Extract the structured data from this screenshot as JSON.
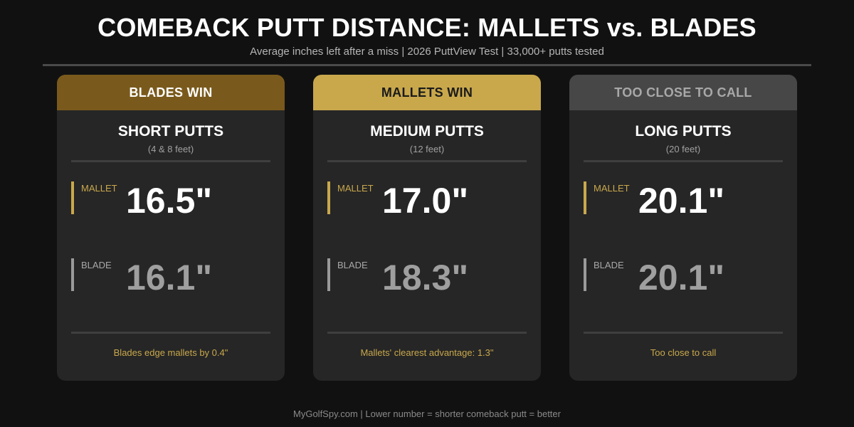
{
  "header": {
    "title": "COMEBACK PUTT DISTANCE: MALLETS vs. BLADES",
    "subtitle": "Average inches left after a miss  |  2026 PuttView Test  |  33,000+ putts tested"
  },
  "chart_data": {
    "type": "table",
    "title": "COMEBACK PUTT DISTANCE: MALLETS vs. BLADES",
    "subtitle": "Average inches left after a miss  |  2026 PuttView Test  |  33,000+ putts tested",
    "unit": "inches",
    "series_names": [
      "MALLET",
      "BLADE"
    ],
    "categories": [
      {
        "verdict": "BLADES WIN",
        "verdict_bg": "#7a5a1c",
        "verdict_fg": "#ffffff",
        "name": "SHORT PUTTS",
        "distance": "(4 & 8 feet)",
        "mallet": 16.5,
        "blade": 16.1,
        "mallet_label": "16.5\"",
        "blade_label": "16.1\"",
        "note": "Blades edge mallets by 0.4\""
      },
      {
        "verdict": "MALLETS WIN",
        "verdict_bg": "#c9a84c",
        "verdict_fg": "#1a1a1a",
        "name": "MEDIUM PUTTS",
        "distance": "(12 feet)",
        "mallet": 17.0,
        "blade": 18.3,
        "mallet_label": "17.0\"",
        "blade_label": "18.3\"",
        "note": "Mallets' clearest advantage: 1.3\""
      },
      {
        "verdict": "TOO CLOSE TO CALL",
        "verdict_bg": "#474747",
        "verdict_fg": "#a8a8a8",
        "name": "LONG PUTTS",
        "distance": "(20 feet)",
        "mallet": 20.1,
        "blade": 20.1,
        "mallet_label": "20.1\"",
        "blade_label": "20.1\"",
        "note": "Too close to call"
      }
    ]
  },
  "footer": {
    "text": "MyGolfSpy.com  |  Lower number = shorter comeback putt = better"
  },
  "colors": {
    "background": "#111111",
    "card": "#262626",
    "gold": "#c9a84c",
    "dark_gold": "#7a5a1c",
    "gray_header": "#474747",
    "blade_value": "#9f9f9f"
  }
}
